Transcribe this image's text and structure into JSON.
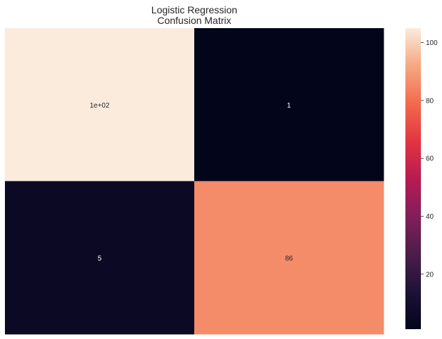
{
  "chart_data": {
    "type": "heatmap",
    "title_lines": [
      "Logistic Regression",
      "Confusion Matrix"
    ],
    "xlabel": "",
    "ylabel": "",
    "rows": 2,
    "cols": 2,
    "values": [
      [
        105,
        1
      ],
      [
        5,
        86
      ]
    ],
    "annotations": [
      [
        "1e+02",
        "1"
      ],
      [
        "5",
        "86"
      ]
    ],
    "colormap": "rocket",
    "colorbar": {
      "vmin": 1,
      "vmax": 105,
      "ticks": [
        20,
        40,
        60,
        80,
        100
      ]
    },
    "grid": false,
    "legend": "colorbar-right"
  }
}
